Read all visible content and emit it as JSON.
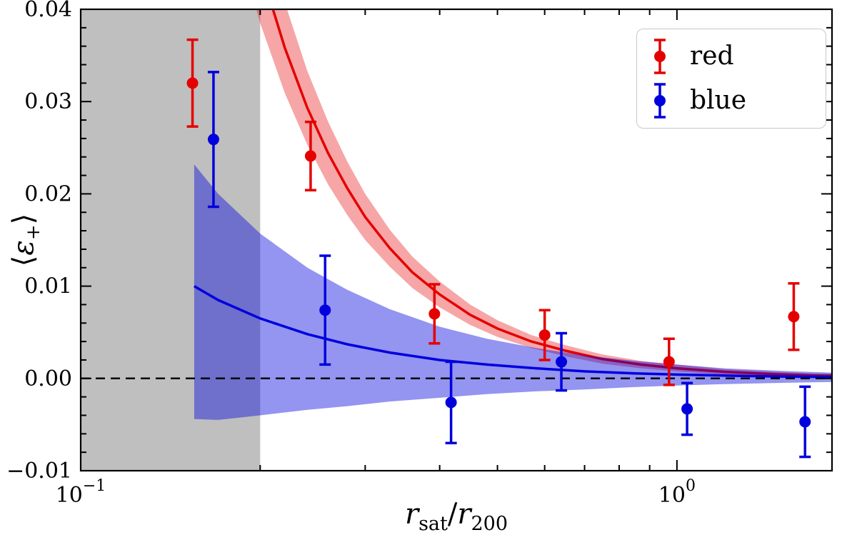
{
  "figure": {
    "background": "#ffffff"
  },
  "chart_data": {
    "type": "scatter",
    "xscale": "log",
    "xlim": [
      0.1,
      1.82
    ],
    "ylim": [
      -0.01,
      0.04
    ],
    "xlabel_parts": {
      "var1": "r",
      "sub1": "sat",
      "slash": "/",
      "var2": "r",
      "sub2": "200"
    },
    "ylabel_parts": {
      "open": "⟨",
      "symbol": "ε",
      "sub": "+",
      "close": "⟩"
    },
    "x_ticks": [
      {
        "value": 0.1,
        "base": "10",
        "exp": "−1"
      },
      {
        "value": 1.0,
        "base": "10",
        "exp": "0"
      }
    ],
    "y_ticks": [
      {
        "value": -0.01,
        "label": "−0.01"
      },
      {
        "value": 0.0,
        "label": "0.00"
      },
      {
        "value": 0.01,
        "label": "0.01"
      },
      {
        "value": 0.02,
        "label": "0.02"
      },
      {
        "value": 0.03,
        "label": "0.03"
      },
      {
        "value": 0.04,
        "label": "0.04"
      }
    ],
    "y_minor_step": 0.002,
    "zero_line": {
      "y": 0.0,
      "color": "#000000",
      "style": "dashed"
    },
    "excluded_region": {
      "x_start": 0.1,
      "x_end": 0.2,
      "color": "#808080",
      "opacity": 0.5
    },
    "series": [
      {
        "name": "red",
        "color": "#e50000",
        "band_opacity": 0.35,
        "points": [
          {
            "x": 0.154,
            "y": 0.032,
            "err": 0.0047
          },
          {
            "x": 0.243,
            "y": 0.0241,
            "err": 0.0037
          },
          {
            "x": 0.392,
            "y": 0.007,
            "err": 0.0032
          },
          {
            "x": 0.6,
            "y": 0.0047,
            "err": 0.0027
          },
          {
            "x": 0.97,
            "y": 0.0018,
            "err": 0.0025
          },
          {
            "x": 1.57,
            "y": 0.0067,
            "err": 0.0036
          }
        ],
        "curve": {
          "x": [
            0.18,
            0.2,
            0.22,
            0.24,
            0.26,
            0.28,
            0.3,
            0.33,
            0.36,
            0.4,
            0.45,
            0.5,
            0.57,
            0.65,
            0.75,
            0.87,
            1.0,
            1.2,
            1.45,
            1.7,
            1.85
          ],
          "y": [
            0.0568,
            0.0445,
            0.0358,
            0.0293,
            0.0244,
            0.0206,
            0.0175,
            0.0141,
            0.0115,
            0.0091,
            0.0069,
            0.0054,
            0.004,
            0.003,
            0.0021,
            0.0015,
            0.0011,
            0.00072,
            0.00047,
            0.00032,
            0.00027
          ]
        },
        "band": {
          "upper": [
            0.0644,
            0.0505,
            0.0407,
            0.0333,
            0.0278,
            0.0235,
            0.02,
            0.0161,
            0.0132,
            0.0105,
            0.008,
            0.0063,
            0.0047,
            0.0036,
            0.0026,
            0.0019,
            0.0015,
            0.001,
            0.00073,
            0.00056,
            0.0005
          ],
          "lower": [
            0.0492,
            0.0385,
            0.0309,
            0.0253,
            0.021,
            0.0177,
            0.015,
            0.0121,
            0.0098,
            0.0077,
            0.0058,
            0.0045,
            0.0033,
            0.0024,
            0.0016,
            0.0011,
            0.00076,
            0.00043,
            0.00021,
            8e-05,
            3e-05
          ]
        }
      },
      {
        "name": "blue",
        "color": "#0000dd",
        "band_opacity": 0.42,
        "points": [
          {
            "x": 0.167,
            "y": 0.0259,
            "err": 0.0073
          },
          {
            "x": 0.257,
            "y": 0.0074,
            "err": 0.0059
          },
          {
            "x": 0.418,
            "y": -0.0026,
            "err": 0.0044
          },
          {
            "x": 0.64,
            "y": 0.0018,
            "err": 0.0031
          },
          {
            "x": 1.04,
            "y": -0.0033,
            "err": 0.0028
          },
          {
            "x": 1.64,
            "y": -0.0047,
            "err": 0.0038
          }
        ],
        "curve": {
          "x": [
            0.155,
            0.17,
            0.2,
            0.24,
            0.28,
            0.33,
            0.4,
            0.48,
            0.58,
            0.7,
            0.85,
            1.0,
            1.2,
            1.5,
            1.85
          ],
          "y": [
            0.01,
            0.0085,
            0.0065,
            0.0048,
            0.0037,
            0.0028,
            0.002,
            0.0015,
            0.0011,
            0.00077,
            0.00055,
            0.00042,
            0.00031,
            0.00021,
            0.00015
          ]
        },
        "band": {
          "upper": [
            0.0232,
            0.02,
            0.0157,
            0.012,
            0.0096,
            0.0075,
            0.0056,
            0.0043,
            0.0033,
            0.0025,
            0.0019,
            0.0015,
            0.0011,
            0.00082,
            0.00061
          ],
          "lower": [
            -0.0044,
            -0.0045,
            -0.004,
            -0.0034,
            -0.003,
            -0.0025,
            -0.0021,
            -0.0017,
            -0.0014,
            -0.0012,
            -0.00094,
            -0.00077,
            -0.00062,
            -0.00048,
            -0.00037
          ]
        }
      }
    ],
    "legend": {
      "position": "top-right",
      "items": [
        {
          "label": "red"
        },
        {
          "label": "blue"
        }
      ]
    }
  }
}
